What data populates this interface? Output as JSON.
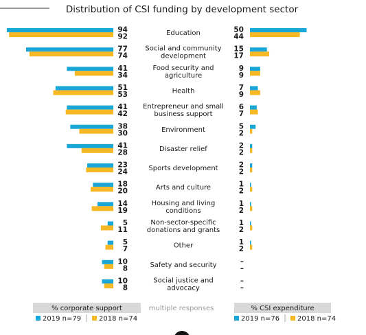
{
  "chart_data": {
    "type": "butterfly-bar",
    "title": "Distribution of CSI funding by development sector",
    "categories": [
      [
        "Education"
      ],
      [
        "Social and community",
        "development"
      ],
      [
        "Food security and",
        "agriculture"
      ],
      [
        "Health"
      ],
      [
        "Entrepreneur and small",
        "business support"
      ],
      [
        "Environment"
      ],
      [
        "Disaster relief"
      ],
      [
        "Sports development"
      ],
      [
        "Arts and culture"
      ],
      [
        "Housing and living",
        "conditions"
      ],
      [
        "Non-sector-specific",
        "donations and grants"
      ],
      [
        "Other"
      ],
      [
        "Safety and security"
      ],
      [
        "Social justice and",
        "advocacy"
      ]
    ],
    "note": "multiple responses",
    "panels": [
      {
        "label": "% corporate support",
        "series": [
          {
            "name": "2019 n=79",
            "color": "#1aa7d8",
            "values": [
              94,
              77,
              41,
              51,
              41,
              38,
              41,
              23,
              18,
              14,
              5,
              5,
              10,
              10
            ]
          },
          {
            "name": "2018 n=74",
            "color": "#f7b825",
            "values": [
              92,
              74,
              34,
              53,
              42,
              30,
              28,
              24,
              20,
              19,
              11,
              7,
              8,
              8
            ]
          }
        ]
      },
      {
        "label": "% CSI expenditure",
        "series": [
          {
            "name": "2019 n=76",
            "color": "#1aa7d8",
            "values": [
              50,
              15,
              9,
              7,
              6,
              5,
              2,
              2,
              1,
              1,
              1,
              1,
              null,
              null
            ],
            "value_labels": [
              "50",
              "15",
              "9",
              "7",
              "6",
              "5",
              "2",
              "2",
              "1",
              "1",
              "1",
              "1",
              "–",
              "–"
            ]
          },
          {
            "name": "2018 n=74",
            "color": "#f7b825",
            "values": [
              44,
              17,
              9,
              9,
              7,
              2,
              2,
              2,
              2,
              2,
              2,
              2,
              null,
              null
            ],
            "value_labels": [
              "44",
              "17",
              "9",
              "9",
              "7",
              "2",
              "2",
              "2",
              "2",
              "2",
              "2",
              "2",
              "–",
              "–"
            ]
          }
        ]
      }
    ]
  }
}
